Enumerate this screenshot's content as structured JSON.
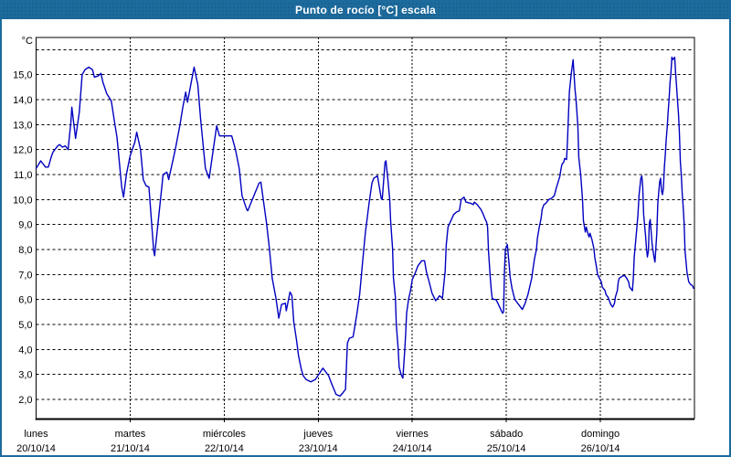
{
  "window": {
    "title": "Punto de rocío [°C] escala"
  },
  "colors": {
    "titlebar": "#1d6b9d",
    "frame": "#1d6b9d",
    "grid": "#000000",
    "line": "#0000c0",
    "background": "#ffffff"
  },
  "chart_data": {
    "type": "line",
    "title": "Punto de rocío [°C] escala",
    "y_unit": "°C",
    "ylim": [
      1.23,
      16.49
    ],
    "x_days_total": 7,
    "grid": true,
    "legend": "none",
    "y_gridlines": [
      16,
      15,
      14,
      13,
      12,
      11,
      10,
      9,
      8,
      7,
      6,
      5,
      4,
      3,
      2
    ],
    "y_tick_labels": [
      {
        "value": 15,
        "label": "15,0"
      },
      {
        "value": 14,
        "label": "14,0"
      },
      {
        "value": 13,
        "label": "13,0"
      },
      {
        "value": 12,
        "label": "12,0"
      },
      {
        "value": 11,
        "label": "11,0"
      },
      {
        "value": 10,
        "label": "10,0"
      },
      {
        "value": 9,
        "label": "9,0"
      },
      {
        "value": 8,
        "label": "8,0"
      },
      {
        "value": 7,
        "label": "7,0"
      },
      {
        "value": 6,
        "label": "6,0"
      },
      {
        "value": 5,
        "label": "5,0"
      },
      {
        "value": 4,
        "label": "4,0"
      },
      {
        "value": 3,
        "label": "3,0"
      },
      {
        "value": 2,
        "label": "2,0"
      }
    ],
    "x_ticks": [
      {
        "day": 0,
        "weekday": "lunes",
        "date": "20/10/14"
      },
      {
        "day": 1,
        "weekday": "martes",
        "date": "21/10/14"
      },
      {
        "day": 2,
        "weekday": "miércoles",
        "date": "22/10/14"
      },
      {
        "day": 3,
        "weekday": "jueves",
        "date": "23/10/14"
      },
      {
        "day": 4,
        "weekday": "viernes",
        "date": "24/10/14"
      },
      {
        "day": 5,
        "weekday": "sábado",
        "date": "25/10/14"
      },
      {
        "day": 6,
        "weekday": "domingo",
        "date": "26/10/14"
      }
    ],
    "series": [
      {
        "name": "Punto de rocío [°C]",
        "color": "#0000c0",
        "points": [
          [
            0,
            11.25
          ],
          [
            0.05,
            11.55
          ],
          [
            0.1,
            11.3
          ],
          [
            0.13,
            11.3
          ],
          [
            0.16,
            11.7
          ],
          [
            0.18,
            11.9
          ],
          [
            0.23,
            12.15
          ],
          [
            0.25,
            12.2
          ],
          [
            0.28,
            12.1
          ],
          [
            0.31,
            12.15
          ],
          [
            0.34,
            12.0
          ],
          [
            0.37,
            13.1
          ],
          [
            0.38,
            13.7
          ],
          [
            0.42,
            12.45
          ],
          [
            0.46,
            13.5
          ],
          [
            0.49,
            15.0
          ],
          [
            0.52,
            15.2
          ],
          [
            0.56,
            15.3
          ],
          [
            0.6,
            15.2
          ],
          [
            0.62,
            14.9
          ],
          [
            0.66,
            14.95
          ],
          [
            0.69,
            15.05
          ],
          [
            0.71,
            14.7
          ],
          [
            0.75,
            14.25
          ],
          [
            0.8,
            13.95
          ],
          [
            0.84,
            12.95
          ],
          [
            0.86,
            12.5
          ],
          [
            0.91,
            10.5
          ],
          [
            0.93,
            10.1
          ],
          [
            0.96,
            11.0
          ],
          [
            1.0,
            11.75
          ],
          [
            1.05,
            12.3
          ],
          [
            1.07,
            12.7
          ],
          [
            1.11,
            12.0
          ],
          [
            1.14,
            10.8
          ],
          [
            1.17,
            10.55
          ],
          [
            1.2,
            10.5
          ],
          [
            1.25,
            7.95
          ],
          [
            1.26,
            7.75
          ],
          [
            1.35,
            11.0
          ],
          [
            1.39,
            11.1
          ],
          [
            1.41,
            10.8
          ],
          [
            1.48,
            12.0
          ],
          [
            1.53,
            13.0
          ],
          [
            1.56,
            13.7
          ],
          [
            1.59,
            14.3
          ],
          [
            1.61,
            13.9
          ],
          [
            1.68,
            15.3
          ],
          [
            1.72,
            14.6
          ],
          [
            1.75,
            13.2
          ],
          [
            1.8,
            11.25
          ],
          [
            1.84,
            10.85
          ],
          [
            1.92,
            12.95
          ],
          [
            1.95,
            12.55
          ],
          [
            2.08,
            12.55
          ],
          [
            2.12,
            12.0
          ],
          [
            2.16,
            11.25
          ],
          [
            2.19,
            10.15
          ],
          [
            2.24,
            9.6
          ],
          [
            2.25,
            9.55
          ],
          [
            2.37,
            10.65
          ],
          [
            2.39,
            10.7
          ],
          [
            2.45,
            9.05
          ],
          [
            2.48,
            8.05
          ],
          [
            2.51,
            6.85
          ],
          [
            2.55,
            6.05
          ],
          [
            2.58,
            5.25
          ],
          [
            2.61,
            5.8
          ],
          [
            2.65,
            5.85
          ],
          [
            2.66,
            5.55
          ],
          [
            2.7,
            6.3
          ],
          [
            2.72,
            6.15
          ],
          [
            2.74,
            5.1
          ],
          [
            2.77,
            4.35
          ],
          [
            2.79,
            3.75
          ],
          [
            2.82,
            3.2
          ],
          [
            2.84,
            2.95
          ],
          [
            2.87,
            2.8
          ],
          [
            2.92,
            2.7
          ],
          [
            2.97,
            2.8
          ],
          [
            3.05,
            3.25
          ],
          [
            3.11,
            2.95
          ],
          [
            3.14,
            2.65
          ],
          [
            3.19,
            2.2
          ],
          [
            3.23,
            2.13
          ],
          [
            3.26,
            2.25
          ],
          [
            3.29,
            2.4
          ],
          [
            3.31,
            4.25
          ],
          [
            3.33,
            4.45
          ],
          [
            3.37,
            4.5
          ],
          [
            3.41,
            5.4
          ],
          [
            3.44,
            6.2
          ],
          [
            3.47,
            7.45
          ],
          [
            3.5,
            8.65
          ],
          [
            3.54,
            9.85
          ],
          [
            3.57,
            10.65
          ],
          [
            3.59,
            10.85
          ],
          [
            3.63,
            10.95
          ],
          [
            3.67,
            10.05
          ],
          [
            3.68,
            10.0
          ],
          [
            3.71,
            11.5
          ],
          [
            3.72,
            11.55
          ],
          [
            3.74,
            10.8
          ],
          [
            3.76,
            10.0
          ],
          [
            3.77,
            9.15
          ],
          [
            3.79,
            8.05
          ],
          [
            3.8,
            6.85
          ],
          [
            3.82,
            6.1
          ],
          [
            3.83,
            5.0
          ],
          [
            3.85,
            4.0
          ],
          [
            3.86,
            3.3
          ],
          [
            3.88,
            3.0
          ],
          [
            3.9,
            2.85
          ],
          [
            3.92,
            4.0
          ],
          [
            3.93,
            4.65
          ],
          [
            3.94,
            5.45
          ],
          [
            3.96,
            6.0
          ],
          [
            3.98,
            6.35
          ],
          [
            4.0,
            6.8
          ],
          [
            4.03,
            7.05
          ],
          [
            4.06,
            7.35
          ],
          [
            4.1,
            7.55
          ],
          [
            4.13,
            7.55
          ],
          [
            4.15,
            7.1
          ],
          [
            4.18,
            6.7
          ],
          [
            4.21,
            6.25
          ],
          [
            4.25,
            5.95
          ],
          [
            4.29,
            6.15
          ],
          [
            4.32,
            6.05
          ],
          [
            4.35,
            7.15
          ],
          [
            4.36,
            8.15
          ],
          [
            4.38,
            8.9
          ],
          [
            4.41,
            9.15
          ],
          [
            4.44,
            9.4
          ],
          [
            4.47,
            9.5
          ],
          [
            4.5,
            9.55
          ],
          [
            4.52,
            10.0
          ],
          [
            4.55,
            10.1
          ],
          [
            4.57,
            9.9
          ],
          [
            4.62,
            9.85
          ],
          [
            4.65,
            9.8
          ],
          [
            4.66,
            9.9
          ],
          [
            4.69,
            9.8
          ],
          [
            4.71,
            9.7
          ],
          [
            4.73,
            9.6
          ],
          [
            4.75,
            9.45
          ],
          [
            4.77,
            9.25
          ],
          [
            4.79,
            9.1
          ],
          [
            4.8,
            8.9
          ],
          [
            4.81,
            7.95
          ],
          [
            4.83,
            6.85
          ],
          [
            4.84,
            6.35
          ],
          [
            4.85,
            6.05
          ],
          [
            4.87,
            6.0
          ],
          [
            4.89,
            6.0
          ],
          [
            4.91,
            5.85
          ],
          [
            4.94,
            5.6
          ],
          [
            4.96,
            5.45
          ],
          [
            4.97,
            5.5
          ],
          [
            4.98,
            7.15
          ],
          [
            4.99,
            8.0
          ],
          [
            5.01,
            8.2
          ],
          [
            5.03,
            7.4
          ],
          [
            5.04,
            6.9
          ],
          [
            5.06,
            6.45
          ],
          [
            5.09,
            6.0
          ],
          [
            5.13,
            5.8
          ],
          [
            5.16,
            5.65
          ],
          [
            5.17,
            5.6
          ],
          [
            5.2,
            5.85
          ],
          [
            5.23,
            6.2
          ],
          [
            5.27,
            6.85
          ],
          [
            5.28,
            7.15
          ],
          [
            5.3,
            7.65
          ],
          [
            5.32,
            8.0
          ],
          [
            5.33,
            8.45
          ],
          [
            5.35,
            8.9
          ],
          [
            5.37,
            9.25
          ],
          [
            5.38,
            9.6
          ],
          [
            5.4,
            9.8
          ],
          [
            5.42,
            9.85
          ],
          [
            5.45,
            10.0
          ],
          [
            5.48,
            10.05
          ],
          [
            5.51,
            10.15
          ],
          [
            5.53,
            10.45
          ],
          [
            5.55,
            10.7
          ],
          [
            5.57,
            10.95
          ],
          [
            5.58,
            11.2
          ],
          [
            5.59,
            11.4
          ],
          [
            5.61,
            11.5
          ],
          [
            5.62,
            11.65
          ],
          [
            5.64,
            11.6
          ],
          [
            5.65,
            12.3
          ],
          [
            5.67,
            14.3
          ],
          [
            5.69,
            15.05
          ],
          [
            5.71,
            15.6
          ],
          [
            5.73,
            14.4
          ],
          [
            5.74,
            14.05
          ],
          [
            5.76,
            12.95
          ],
          [
            5.77,
            11.7
          ],
          [
            5.79,
            11.0
          ],
          [
            5.81,
            10.0
          ],
          [
            5.82,
            9.15
          ],
          [
            5.84,
            8.7
          ],
          [
            5.85,
            8.9
          ],
          [
            5.87,
            8.6
          ],
          [
            5.88,
            8.5
          ],
          [
            5.89,
            8.65
          ],
          [
            5.91,
            8.4
          ],
          [
            5.93,
            8.05
          ],
          [
            5.94,
            7.7
          ],
          [
            5.96,
            7.25
          ],
          [
            5.97,
            7.0
          ],
          [
            5.99,
            6.85
          ],
          [
            6.01,
            6.7
          ],
          [
            6.02,
            6.5
          ],
          [
            6.03,
            6.45
          ],
          [
            6.05,
            6.35
          ],
          [
            6.06,
            6.2
          ],
          [
            6.08,
            6.1
          ],
          [
            6.1,
            5.9
          ],
          [
            6.11,
            5.8
          ],
          [
            6.13,
            5.7
          ],
          [
            6.15,
            5.85
          ],
          [
            6.16,
            6.1
          ],
          [
            6.18,
            6.35
          ],
          [
            6.19,
            6.7
          ],
          [
            6.2,
            6.85
          ],
          [
            6.22,
            6.9
          ],
          [
            6.24,
            6.95
          ],
          [
            6.26,
            6.95
          ],
          [
            6.28,
            6.85
          ],
          [
            6.3,
            6.7
          ],
          [
            6.31,
            6.5
          ],
          [
            6.33,
            6.4
          ],
          [
            6.34,
            6.35
          ],
          [
            6.35,
            6.85
          ],
          [
            6.36,
            7.7
          ],
          [
            6.38,
            8.55
          ],
          [
            6.4,
            9.4
          ],
          [
            6.41,
            10.15
          ],
          [
            6.43,
            10.85
          ],
          [
            6.44,
            10.95
          ],
          [
            6.45,
            10.5
          ],
          [
            6.46,
            9.4
          ],
          [
            6.48,
            8.55
          ],
          [
            6.49,
            8.05
          ],
          [
            6.5,
            7.7
          ],
          [
            6.51,
            7.95
          ],
          [
            6.52,
            9.05
          ],
          [
            6.53,
            9.2
          ],
          [
            6.55,
            8.2
          ],
          [
            6.57,
            7.7
          ],
          [
            6.58,
            7.5
          ],
          [
            6.6,
            8.65
          ],
          [
            6.61,
            9.85
          ],
          [
            6.63,
            10.7
          ],
          [
            6.64,
            10.85
          ],
          [
            6.65,
            10.35
          ],
          [
            6.66,
            10.2
          ],
          [
            6.67,
            10.45
          ],
          [
            6.68,
            11.3
          ],
          [
            6.69,
            11.8
          ],
          [
            6.7,
            12.4
          ],
          [
            6.71,
            12.9
          ],
          [
            6.72,
            13.5
          ],
          [
            6.73,
            14.0
          ],
          [
            6.74,
            14.65
          ],
          [
            6.75,
            15.1
          ],
          [
            6.76,
            15.7
          ],
          [
            6.77,
            15.6
          ],
          [
            6.78,
            15.65
          ],
          [
            6.79,
            15.7
          ],
          [
            6.8,
            15.05
          ],
          [
            6.81,
            14.55
          ],
          [
            6.82,
            13.95
          ],
          [
            6.83,
            13.45
          ],
          [
            6.84,
            12.7
          ],
          [
            6.85,
            11.5
          ],
          [
            6.86,
            11.0
          ],
          [
            6.87,
            10.25
          ],
          [
            6.88,
            9.75
          ],
          [
            6.89,
            9.05
          ],
          [
            6.9,
            7.95
          ],
          [
            6.91,
            7.55
          ],
          [
            6.92,
            7.1
          ],
          [
            6.93,
            6.9
          ],
          [
            6.94,
            6.7
          ],
          [
            6.96,
            6.6
          ],
          [
            6.98,
            6.55
          ],
          [
            6.99,
            6.45
          ]
        ]
      }
    ]
  }
}
